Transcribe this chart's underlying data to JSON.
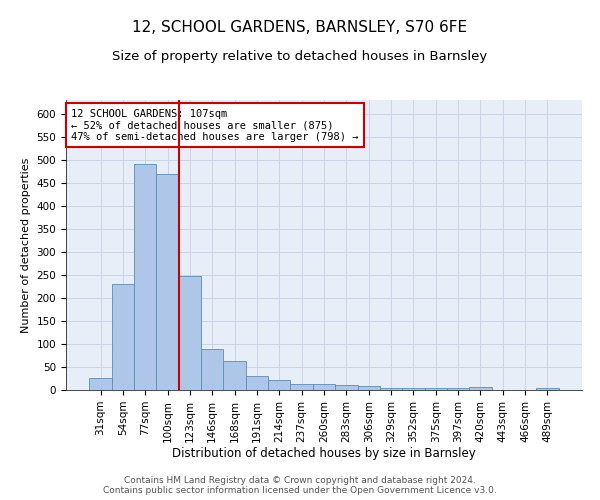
{
  "title": "12, SCHOOL GARDENS, BARNSLEY, S70 6FE",
  "subtitle": "Size of property relative to detached houses in Barnsley",
  "xlabel": "Distribution of detached houses by size in Barnsley",
  "ylabel": "Number of detached properties",
  "categories": [
    "31sqm",
    "54sqm",
    "77sqm",
    "100sqm",
    "123sqm",
    "146sqm",
    "168sqm",
    "191sqm",
    "214sqm",
    "237sqm",
    "260sqm",
    "283sqm",
    "306sqm",
    "329sqm",
    "352sqm",
    "375sqm",
    "397sqm",
    "420sqm",
    "443sqm",
    "466sqm",
    "489sqm"
  ],
  "values": [
    25,
    230,
    490,
    470,
    248,
    88,
    62,
    30,
    22,
    12,
    12,
    10,
    8,
    4,
    4,
    4,
    5,
    7,
    1,
    1,
    4
  ],
  "bar_color": "#aec6e8",
  "bar_edge_color": "#5b8db8",
  "bar_linewidth": 0.6,
  "vline_color": "#cc0000",
  "vline_linewidth": 1.5,
  "vline_x": 3.5,
  "annotation_text": "12 SCHOOL GARDENS: 107sqm\n← 52% of detached houses are smaller (875)\n47% of semi-detached houses are larger (798) →",
  "annotation_box_color": "white",
  "annotation_box_edge": "#cc0000",
  "annotation_fontsize": 7.5,
  "ylim": [
    0,
    630
  ],
  "yticks": [
    0,
    50,
    100,
    150,
    200,
    250,
    300,
    350,
    400,
    450,
    500,
    550,
    600
  ],
  "grid_color": "#c8d4e8",
  "background_color": "#e8eef8",
  "footer_text": "Contains HM Land Registry data © Crown copyright and database right 2024.\nContains public sector information licensed under the Open Government Licence v3.0.",
  "title_fontsize": 11,
  "subtitle_fontsize": 9.5,
  "xlabel_fontsize": 8.5,
  "ylabel_fontsize": 8,
  "tick_fontsize": 7.5,
  "footer_fontsize": 6.5
}
